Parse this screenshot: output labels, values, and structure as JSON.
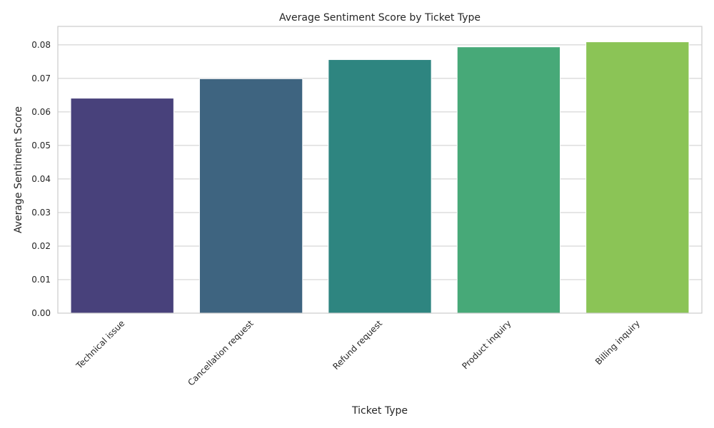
{
  "chart_data": {
    "type": "bar",
    "title": "Average Sentiment Score by Ticket Type",
    "xlabel": "Ticket Type",
    "ylabel": "Average Sentiment Score",
    "categories": [
      "Technical issue",
      "Cancellation request",
      "Refund request",
      "Product inquiry",
      "Billing inquiry"
    ],
    "values": [
      0.0641,
      0.0699,
      0.0756,
      0.0794,
      0.0809
    ],
    "colors": [
      "#48417b",
      "#3e6480",
      "#2e8580",
      "#47a978",
      "#8bc456"
    ],
    "ylim": [
      0,
      0.0855
    ],
    "yticks": [
      "0.00",
      "0.01",
      "0.02",
      "0.03",
      "0.04",
      "0.05",
      "0.06",
      "0.07",
      "0.08"
    ],
    "grid": "horizontal",
    "legend": "none",
    "xtick_rotation": "45 degrees"
  }
}
